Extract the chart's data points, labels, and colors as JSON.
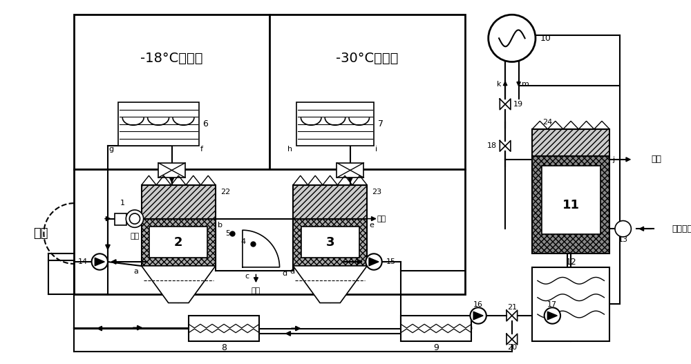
{
  "bg": "#ffffff",
  "lc": "#000000",
  "gray1": "#aaaaaa",
  "gray2": "#cccccc",
  "gray3": "#888888",
  "room1_label": "-18°C冷藏间",
  "room2_label": "-30°C冻结间",
  "corridor_label": "穿堂",
  "labels": {
    "6": "6",
    "7": "7",
    "8": "8",
    "9": "9",
    "10": "10",
    "11": "11",
    "12": "12",
    "13": "13",
    "14": "14",
    "15": "15",
    "16": "16",
    "17": "17",
    "18": "18",
    "19": "19",
    "20": "20",
    "21": "21",
    "22": "22",
    "23": "23",
    "24": "24",
    "2": "2",
    "3": "3",
    "a": "a",
    "b": "b",
    "c": "c",
    "d": "d",
    "e": "e",
    "f": "f",
    "g": "g",
    "h": "h",
    "i": "i",
    "j": "j",
    "k": "k",
    "m": "m",
    "1": "1",
    "4": "4",
    "5": "5"
  },
  "text_jinfeng": "进风",
  "text_songfeng": "送风",
  "text_paiq": "排气",
  "text_shiwai": "室外空气"
}
